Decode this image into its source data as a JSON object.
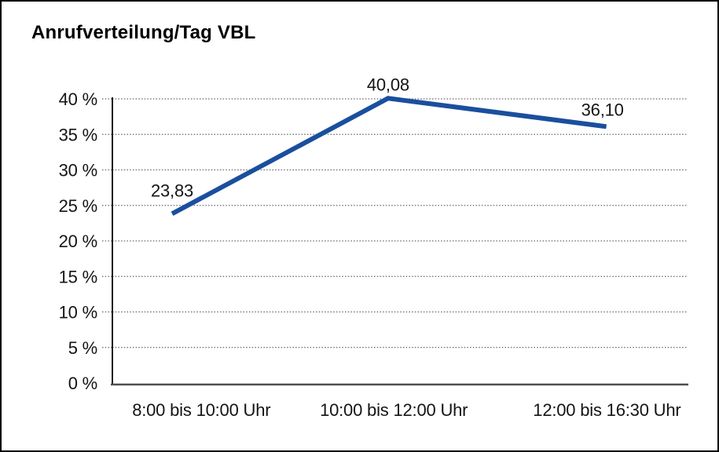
{
  "chart_data": {
    "type": "line",
    "title": "Anrufverteilung/Tag VBL",
    "categories": [
      "8:00 bis 10:00 Uhr",
      "10:00 bis 12:00 Uhr",
      "12:00 bis 16:30 Uhr"
    ],
    "values": [
      23.83,
      40.08,
      36.1
    ],
    "data_labels": [
      "23,83",
      "40,08",
      "36,10"
    ],
    "y_ticks": [
      0,
      5,
      10,
      15,
      20,
      25,
      30,
      35,
      40
    ],
    "y_tick_labels": [
      "0 %",
      "5 %",
      "10 %",
      "15 %",
      "20 %",
      "25 %",
      "30 %",
      "35 %",
      "40 %"
    ],
    "ylim": [
      0,
      40
    ],
    "xlabel": "",
    "ylabel": "",
    "grid": "horizontal dotted",
    "legend": "none",
    "line_color": "#1a4f9e",
    "decimal_separator": ","
  },
  "colors": {
    "line": "#1a4f9e",
    "grid": "#666666",
    "axis": "#1c1c1c",
    "baseline": "#4f4f4f",
    "text": "#141414",
    "border": "#000000",
    "background": "#ffffff"
  }
}
